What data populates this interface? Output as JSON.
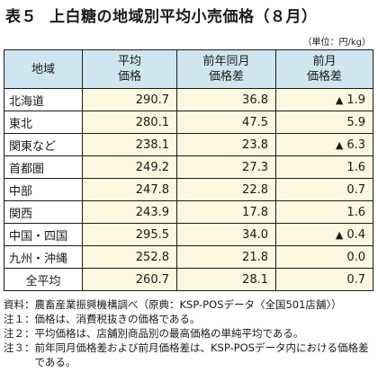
{
  "title": {
    "number": "表５",
    "text": "上白糖の地域別平均小売価格（８月）"
  },
  "unit": "（単位：円/kg）",
  "table": {
    "headers": {
      "area": "地域",
      "avg_price": [
        "平均",
        "価格"
      ],
      "yoy_diff": [
        "前年同月",
        "価格差"
      ],
      "mom_diff": [
        "前月",
        "価格差"
      ]
    },
    "rows": [
      {
        "area": "北海道",
        "avg_price": "290.7",
        "yoy_diff": "36.8",
        "mom_up": true,
        "mom_diff": "1.9"
      },
      {
        "area": "東北",
        "avg_price": "280.1",
        "yoy_diff": "47.5",
        "mom_up": false,
        "mom_diff": "5.9"
      },
      {
        "area": "関東など",
        "avg_price": "238.1",
        "yoy_diff": "23.8",
        "mom_up": true,
        "mom_diff": "6.3"
      },
      {
        "area": "首都圏",
        "avg_price": "249.2",
        "yoy_diff": "27.3",
        "mom_up": false,
        "mom_diff": "1.6"
      },
      {
        "area": "中部",
        "avg_price": "247.8",
        "yoy_diff": "22.8",
        "mom_up": false,
        "mom_diff": "0.7"
      },
      {
        "area": "関西",
        "avg_price": "243.9",
        "yoy_diff": "17.8",
        "mom_up": false,
        "mom_diff": "1.6"
      },
      {
        "area": "中国・四国",
        "avg_price": "295.5",
        "yoy_diff": "34.0",
        "mom_up": true,
        "mom_diff": "0.4"
      },
      {
        "area": "九州・沖縄",
        "avg_price": "252.8",
        "yoy_diff": "21.8",
        "mom_up": false,
        "mom_diff": "0.0"
      }
    ],
    "total": {
      "area": "全平均",
      "avg_price": "260.7",
      "yoy_diff": "28.1",
      "mom_up": false,
      "mom_diff": "0.7"
    },
    "up_marker": "▲"
  },
  "notes": [
    {
      "label": "資料：",
      "text": "農畜産業振興機構調べ（原典：KSP-POSデータ〈全国501店舗〉）"
    },
    {
      "label": "注１：",
      "text": "価格は、消費税抜きの価格である。"
    },
    {
      "label": "注２：",
      "text": "平均価格は、店舗別商品別の最高価格の単純平均である。"
    },
    {
      "label": "注３：",
      "text": "前年同月価格差および前月価格差は、KSP-POSデータ内における価格差である。"
    }
  ]
}
